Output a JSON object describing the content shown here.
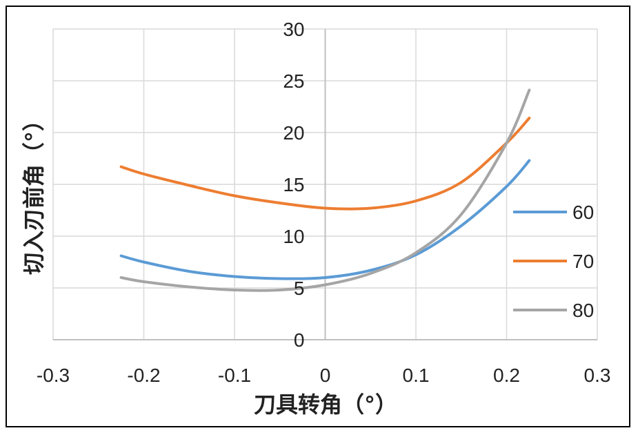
{
  "chart_data": {
    "type": "line",
    "title": "",
    "xlabel": "刀具转角（°）",
    "ylabel": "切入刃前角（°）",
    "xlim": [
      -0.3,
      0.3
    ],
    "ylim": [
      0,
      30
    ],
    "x_ticks": [
      "-0.3",
      "-0.2",
      "-0.1",
      "0",
      "0.1",
      "0.2",
      "0.3"
    ],
    "y_ticks": [
      "0",
      "5",
      "10",
      "15",
      "20",
      "25",
      "30"
    ],
    "grid": true,
    "legend_position": "right",
    "x": [
      -0.225,
      -0.2,
      -0.15,
      -0.1,
      -0.05,
      0,
      0.05,
      0.1,
      0.15,
      0.2,
      0.225
    ],
    "series": [
      {
        "name": "60",
        "color": "#5B9BD5",
        "values": [
          8.1,
          7.5,
          6.6,
          6.1,
          5.9,
          6.0,
          6.7,
          8.2,
          11.0,
          14.8,
          17.3
        ]
      },
      {
        "name": "70",
        "color": "#ED7D31",
        "values": [
          16.7,
          16.0,
          14.9,
          13.9,
          13.2,
          12.7,
          12.7,
          13.4,
          15.2,
          19.0,
          21.4
        ]
      },
      {
        "name": "80",
        "color": "#A5A5A5",
        "values": [
          6.0,
          5.6,
          5.1,
          4.8,
          4.8,
          5.3,
          6.4,
          8.4,
          12.1,
          19.0,
          24.1
        ]
      }
    ]
  }
}
